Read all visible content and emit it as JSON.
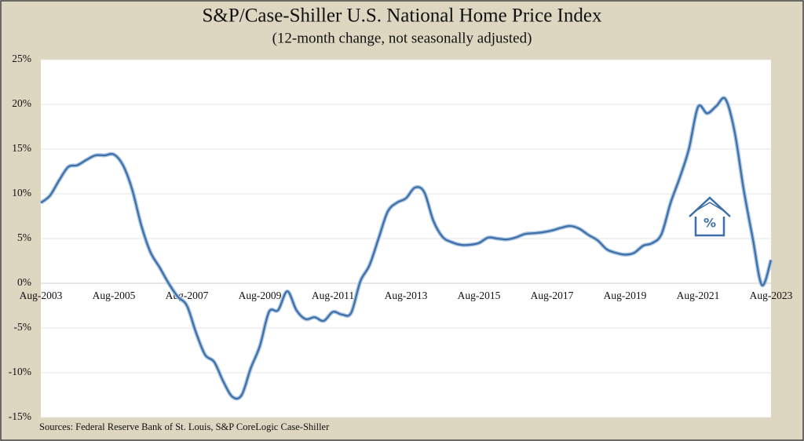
{
  "chart_data": {
    "type": "line",
    "title": "S&P/Case-Shiller U.S. National Home Price Index",
    "subtitle": "(12-month change, not seasonally adjusted)",
    "source": "Sources: Federal Reserve Bank of St. Louis, S&P CoreLogic Case-Shiller",
    "categories": [
      "Aug-2003",
      "Nov-2003",
      "Feb-2004",
      "May-2004",
      "Aug-2004",
      "Nov-2004",
      "Feb-2005",
      "May-2005",
      "Aug-2005",
      "Nov-2005",
      "Feb-2006",
      "May-2006",
      "Aug-2006",
      "Nov-2006",
      "Feb-2007",
      "May-2007",
      "Aug-2007",
      "Nov-2007",
      "Feb-2008",
      "May-2008",
      "Aug-2008",
      "Nov-2008",
      "Feb-2009",
      "May-2009",
      "Aug-2009",
      "Nov-2009",
      "Feb-2010",
      "May-2010",
      "Aug-2010",
      "Nov-2010",
      "Feb-2011",
      "May-2011",
      "Aug-2011",
      "Nov-2011",
      "Feb-2012",
      "May-2012",
      "Aug-2012",
      "Nov-2012",
      "Feb-2013",
      "May-2013",
      "Aug-2013",
      "Nov-2013",
      "Feb-2014",
      "May-2014",
      "Aug-2014",
      "Nov-2014",
      "Feb-2015",
      "May-2015",
      "Aug-2015",
      "Nov-2015",
      "Feb-2016",
      "May-2016",
      "Aug-2016",
      "Nov-2016",
      "Feb-2017",
      "May-2017",
      "Aug-2017",
      "Nov-2017",
      "Feb-2018",
      "May-2018",
      "Aug-2018",
      "Nov-2018",
      "Feb-2019",
      "May-2019",
      "Aug-2019",
      "Nov-2019",
      "Feb-2020",
      "May-2020",
      "Aug-2020",
      "Nov-2020",
      "Feb-2021",
      "May-2021",
      "Aug-2021",
      "Nov-2021",
      "Feb-2022",
      "May-2022",
      "Aug-2022",
      "Nov-2022",
      "Feb-2023",
      "May-2023",
      "Aug-2023"
    ],
    "values": [
      9.0,
      9.8,
      11.5,
      13.0,
      13.2,
      13.8,
      14.3,
      14.3,
      14.4,
      13.2,
      10.5,
      6.5,
      3.5,
      1.8,
      0.0,
      -1.5,
      -2.5,
      -5.5,
      -8.0,
      -8.8,
      -11.0,
      -12.7,
      -12.5,
      -9.5,
      -7.0,
      -3.2,
      -3.0,
      -0.9,
      -3.0,
      -4.0,
      -3.8,
      -4.2,
      -3.2,
      -3.5,
      -3.3,
      0.2,
      2.0,
      5.0,
      8.0,
      9.0,
      9.5,
      10.7,
      10.2,
      7.0,
      5.2,
      4.6,
      4.3,
      4.3,
      4.5,
      5.1,
      5.0,
      4.9,
      5.1,
      5.5,
      5.6,
      5.7,
      5.9,
      6.2,
      6.4,
      6.1,
      5.4,
      4.8,
      3.8,
      3.4,
      3.2,
      3.4,
      4.2,
      4.5,
      5.5,
      9.0,
      11.8,
      15.0,
      19.7,
      19.0,
      19.8,
      20.6,
      17.0,
      10.5,
      5.0,
      -0.2,
      2.6
    ],
    "color": "#3d6fa8",
    "ylim": [
      -15,
      25
    ],
    "yticks": [
      {
        "value": -15,
        "label": "-15%"
      },
      {
        "value": -10,
        "label": "-10%"
      },
      {
        "value": -5,
        "label": "-5%"
      },
      {
        "value": 0,
        "label": "0%"
      },
      {
        "value": 5,
        "label": "5%"
      },
      {
        "value": 10,
        "label": "10%"
      },
      {
        "value": 15,
        "label": "15%"
      },
      {
        "value": 20,
        "label": "20%"
      },
      {
        "value": 25,
        "label": "25%"
      }
    ],
    "grid": true
  }
}
